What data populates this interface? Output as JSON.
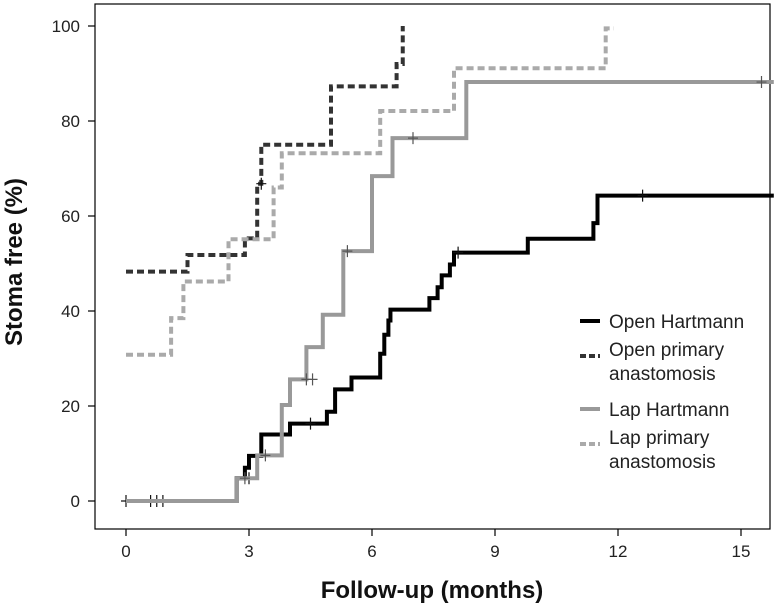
{
  "chart_data": {
    "type": "line",
    "subtype": "kaplan-meier step",
    "title": "",
    "xlabel": "Follow-up (months)",
    "ylabel": "Stoma free (%)",
    "xlim": [
      0,
      16
    ],
    "ylim": [
      0,
      100
    ],
    "xticks": [
      "0",
      "3",
      "6",
      "9",
      "12",
      "15"
    ],
    "yticks": [
      "0",
      "20",
      "40",
      "60",
      "80",
      "100"
    ],
    "grid": false,
    "legend_position": "right",
    "series": [
      {
        "name": "Open Hartmann",
        "color": "#000000",
        "style": "solid",
        "x": [
          0,
          2.7,
          2.9,
          3.0,
          3.3,
          3.5,
          4.0,
          4.3,
          4.9,
          5.1,
          5.5,
          6.2,
          6.3,
          6.4,
          6.45,
          7.4,
          7.6,
          7.7,
          7.9,
          8.0,
          8.1,
          9.8,
          11.4,
          11.5,
          15.8
        ],
        "y": [
          0,
          4.8,
          7.0,
          9.5,
          14.0,
          14.0,
          16.3,
          16.3,
          18.8,
          23.5,
          26.0,
          31.0,
          35.0,
          38.0,
          40.3,
          42.7,
          45.0,
          47.5,
          49.8,
          52.3,
          52.3,
          55.2,
          58.5,
          64.3,
          64.3
        ],
        "censored": [
          {
            "x": 0,
            "y": 0
          },
          {
            "x": 0.6,
            "y": 0
          },
          {
            "x": 0.75,
            "y": 0
          },
          {
            "x": 0.9,
            "y": 0
          },
          {
            "x": 3.0,
            "y": 4.8
          },
          {
            "x": 4.5,
            "y": 16.3
          },
          {
            "x": 8.1,
            "y": 52.3
          },
          {
            "x": 12.6,
            "y": 64.3
          }
        ]
      },
      {
        "name": "Open primary anastomosis",
        "color": "#333333",
        "style": "dash",
        "x": [
          0,
          1.5,
          2.9,
          3.2,
          3.3,
          5.0,
          6.6,
          6.75
        ],
        "y": [
          48.3,
          51.8,
          55.3,
          66.8,
          75.0,
          87.3,
          92.0,
          100
        ],
        "censored": [
          {
            "x": 3.3,
            "y": 66.8
          }
        ]
      },
      {
        "name": "Lap Hartmann",
        "color": "#999999",
        "style": "solid",
        "x": [
          0,
          2.7,
          3.2,
          3.5,
          3.8,
          4.0,
          4.4,
          4.8,
          5.3,
          5.6,
          6.0,
          6.5,
          8.3,
          15.8
        ],
        "y": [
          0,
          4.8,
          9.6,
          9.6,
          20.2,
          25.6,
          32.4,
          39.2,
          52.6,
          52.6,
          68.4,
          76.4,
          88.2,
          88.2
        ],
        "censored": [
          {
            "x": 2.9,
            "y": 4.8
          },
          {
            "x": 3.4,
            "y": 9.6
          },
          {
            "x": 4.4,
            "y": 25.6
          },
          {
            "x": 4.55,
            "y": 25.6
          },
          {
            "x": 5.4,
            "y": 52.6
          },
          {
            "x": 7.0,
            "y": 76.4
          },
          {
            "x": 15.5,
            "y": 88.2
          }
        ]
      },
      {
        "name": "Lap primary anastomosis",
        "color": "#aaaaaa",
        "style": "dash",
        "x": [
          0,
          1.1,
          1.4,
          2.5,
          3.0,
          3.6,
          3.8,
          4.0,
          6.2,
          6.4,
          8.0,
          8.3,
          11.7,
          11.9
        ],
        "y": [
          30.8,
          38.5,
          46.2,
          55.1,
          55.1,
          66.0,
          73.2,
          73.2,
          82.1,
          82.1,
          91.1,
          91.1,
          99.5,
          99.5
        ],
        "censored": []
      }
    ]
  }
}
